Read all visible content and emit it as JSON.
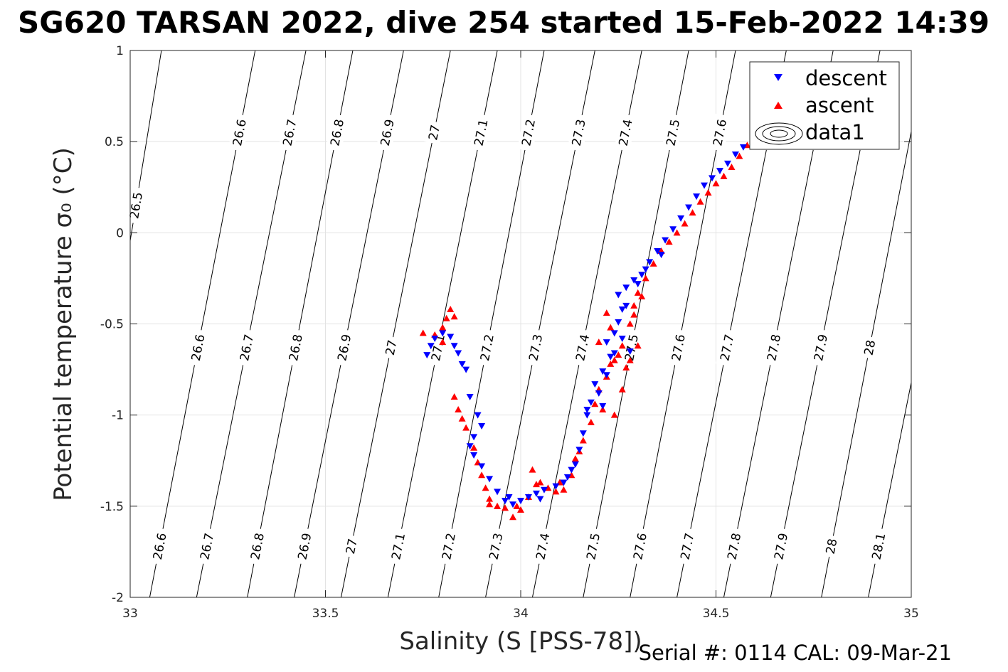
{
  "chart_data": {
    "type": "scatter",
    "title": "SG620 TARSAN 2022, dive 254 started 15-Feb-2022 14:39",
    "xlabel": "Salinity (S [PSS-78])",
    "ylabel": "Potential temperature σ₀ (°C)",
    "xlim": [
      33,
      35
    ],
    "ylim": [
      -2,
      1
    ],
    "xticks": [
      33,
      33.5,
      34,
      34.5,
      35
    ],
    "xtick_labels": [
      "33",
      "33.5",
      "34",
      "34.5",
      "35"
    ],
    "yticks": [
      -2,
      -1.5,
      -1,
      -0.5,
      0,
      0.5,
      1
    ],
    "ytick_labels": [
      "-2",
      "-1.5",
      "-1",
      "-0.5",
      "0",
      "0.5",
      "1"
    ],
    "grid": true,
    "legend_position": "top-right",
    "footer": "Serial #: 0114  CAL: 09-Mar-21",
    "isopycnals": [
      {
        "value": "26.5",
        "s_bottom": 32.85,
        "s_top": 33.08
      },
      {
        "value": "26.6",
        "s_bottom": 33.05,
        "s_top": 33.32
      },
      {
        "value": "26.7",
        "s_bottom": 33.17,
        "s_top": 33.45
      },
      {
        "value": "26.8",
        "s_bottom": 33.3,
        "s_top": 33.57
      },
      {
        "value": "26.9",
        "s_bottom": 33.42,
        "s_top": 33.7
      },
      {
        "value": "27",
        "s_bottom": 33.54,
        "s_top": 33.82
      },
      {
        "value": "27.1",
        "s_bottom": 33.66,
        "s_top": 33.94
      },
      {
        "value": "27.2",
        "s_bottom": 33.79,
        "s_top": 34.06
      },
      {
        "value": "27.3",
        "s_bottom": 33.91,
        "s_top": 34.19
      },
      {
        "value": "27.4",
        "s_bottom": 34.03,
        "s_top": 34.31
      },
      {
        "value": "27.5",
        "s_bottom": 34.16,
        "s_top": 34.43
      },
      {
        "value": "27.6",
        "s_bottom": 34.28,
        "s_top": 34.55
      },
      {
        "value": "27.7",
        "s_bottom": 34.4,
        "s_top": 34.68
      },
      {
        "value": "27.8",
        "s_bottom": 34.52,
        "s_top": 34.8
      },
      {
        "value": "27.9",
        "s_bottom": 34.64,
        "s_top": 34.92
      },
      {
        "value": "28",
        "s_bottom": 34.77,
        "s_top": 35.04
      },
      {
        "value": "28.1",
        "s_bottom": 34.89,
        "s_top": 35.17
      }
    ],
    "series": [
      {
        "name": "descent",
        "color": "#0000ff",
        "marker": "triangle-down",
        "points": [
          [
            33.76,
            -0.67
          ],
          [
            33.77,
            -0.62
          ],
          [
            33.78,
            -0.58
          ],
          [
            33.8,
            -0.55
          ],
          [
            33.82,
            -0.57
          ],
          [
            33.83,
            -0.62
          ],
          [
            33.84,
            -0.66
          ],
          [
            33.85,
            -0.72
          ],
          [
            33.86,
            -0.75
          ],
          [
            33.87,
            -0.9
          ],
          [
            33.89,
            -1.0
          ],
          [
            33.9,
            -1.06
          ],
          [
            33.88,
            -1.12
          ],
          [
            33.87,
            -1.17
          ],
          [
            33.88,
            -1.22
          ],
          [
            33.9,
            -1.28
          ],
          [
            33.92,
            -1.35
          ],
          [
            33.94,
            -1.42
          ],
          [
            33.96,
            -1.47
          ],
          [
            33.98,
            -1.49
          ],
          [
            34.0,
            -1.47
          ],
          [
            34.02,
            -1.45
          ],
          [
            34.04,
            -1.43
          ],
          [
            34.06,
            -1.41
          ],
          [
            34.09,
            -1.39
          ],
          [
            34.11,
            -1.37
          ],
          [
            34.12,
            -1.34
          ],
          [
            34.14,
            -1.27
          ],
          [
            34.15,
            -1.19
          ],
          [
            34.16,
            -1.1
          ],
          [
            34.17,
            -1.0
          ],
          [
            34.18,
            -0.93
          ],
          [
            34.19,
            -0.83
          ],
          [
            34.21,
            -0.76
          ],
          [
            34.23,
            -0.68
          ],
          [
            34.22,
            -0.6
          ],
          [
            34.24,
            -0.55
          ],
          [
            34.25,
            -0.49
          ],
          [
            34.26,
            -0.42
          ],
          [
            34.25,
            -0.34
          ],
          [
            34.27,
            -0.3
          ],
          [
            34.29,
            -0.26
          ],
          [
            34.31,
            -0.23
          ],
          [
            34.33,
            -0.16
          ],
          [
            34.35,
            -0.1
          ],
          [
            34.37,
            -0.04
          ],
          [
            34.39,
            0.02
          ],
          [
            34.41,
            0.08
          ],
          [
            34.43,
            0.14
          ],
          [
            34.45,
            0.2
          ],
          [
            34.47,
            0.26
          ],
          [
            34.49,
            0.3
          ],
          [
            34.51,
            0.34
          ],
          [
            34.53,
            0.38
          ],
          [
            34.55,
            0.43
          ],
          [
            34.57,
            0.47
          ],
          [
            34.28,
            -0.65
          ],
          [
            34.26,
            -0.58
          ],
          [
            34.2,
            -0.88
          ],
          [
            34.17,
            -0.97
          ],
          [
            34.13,
            -1.3
          ],
          [
            33.97,
            -1.45
          ],
          [
            34.05,
            -1.46
          ],
          [
            34.22,
            -0.78
          ],
          [
            34.24,
            -0.66
          ],
          [
            34.3,
            -0.28
          ],
          [
            34.27,
            -0.4
          ],
          [
            34.32,
            -0.2
          ],
          [
            34.36,
            -0.12
          ],
          [
            34.21,
            -0.95
          ]
        ]
      },
      {
        "name": "ascent",
        "color": "#ff0000",
        "marker": "triangle-up",
        "points": [
          [
            33.75,
            -0.55
          ],
          [
            33.78,
            -0.56
          ],
          [
            33.8,
            -0.52
          ],
          [
            33.81,
            -0.47
          ],
          [
            33.82,
            -0.42
          ],
          [
            33.83,
            -0.46
          ],
          [
            33.8,
            -0.6
          ],
          [
            33.83,
            -0.9
          ],
          [
            33.84,
            -0.97
          ],
          [
            33.85,
            -1.02
          ],
          [
            33.86,
            -1.07
          ],
          [
            33.88,
            -1.18
          ],
          [
            33.89,
            -1.26
          ],
          [
            33.9,
            -1.33
          ],
          [
            33.91,
            -1.4
          ],
          [
            33.92,
            -1.46
          ],
          [
            33.94,
            -1.5
          ],
          [
            33.96,
            -1.51
          ],
          [
            33.98,
            -1.56
          ],
          [
            34.0,
            -1.52
          ],
          [
            34.02,
            -1.45
          ],
          [
            34.03,
            -1.3
          ],
          [
            34.05,
            -1.37
          ],
          [
            34.07,
            -1.4
          ],
          [
            34.09,
            -1.42
          ],
          [
            34.11,
            -1.41
          ],
          [
            34.13,
            -1.33
          ],
          [
            34.14,
            -1.24
          ],
          [
            34.16,
            -1.14
          ],
          [
            34.18,
            -1.04
          ],
          [
            34.19,
            -0.94
          ],
          [
            34.2,
            -0.86
          ],
          [
            34.22,
            -0.79
          ],
          [
            34.23,
            -0.72
          ],
          [
            34.24,
            -0.7
          ],
          [
            34.25,
            -0.67
          ],
          [
            34.27,
            -0.74
          ],
          [
            34.28,
            -0.7
          ],
          [
            34.26,
            -0.62
          ],
          [
            34.22,
            -0.44
          ],
          [
            34.28,
            -0.5
          ],
          [
            34.29,
            -0.4
          ],
          [
            34.3,
            -0.33
          ],
          [
            34.32,
            -0.25
          ],
          [
            34.34,
            -0.17
          ],
          [
            34.36,
            -0.1
          ],
          [
            34.38,
            -0.05
          ],
          [
            34.4,
            0.0
          ],
          [
            34.42,
            0.05
          ],
          [
            34.44,
            0.11
          ],
          [
            34.46,
            0.17
          ],
          [
            34.48,
            0.22
          ],
          [
            34.5,
            0.27
          ],
          [
            34.52,
            0.31
          ],
          [
            34.54,
            0.36
          ],
          [
            34.56,
            0.42
          ],
          [
            34.58,
            0.48
          ],
          [
            34.21,
            -0.97
          ],
          [
            34.24,
            -1.0
          ],
          [
            34.2,
            -0.6
          ],
          [
            34.3,
            -0.62
          ],
          [
            34.26,
            -0.86
          ],
          [
            33.99,
            -1.5
          ],
          [
            34.04,
            -1.38
          ],
          [
            34.1,
            -1.37
          ],
          [
            34.15,
            -1.2
          ],
          [
            34.31,
            -0.35
          ],
          [
            34.29,
            -0.45
          ],
          [
            34.23,
            -0.52
          ],
          [
            33.92,
            -1.49
          ]
        ]
      },
      {
        "name": "data1",
        "color": "#000000",
        "marker": "contour"
      }
    ]
  }
}
